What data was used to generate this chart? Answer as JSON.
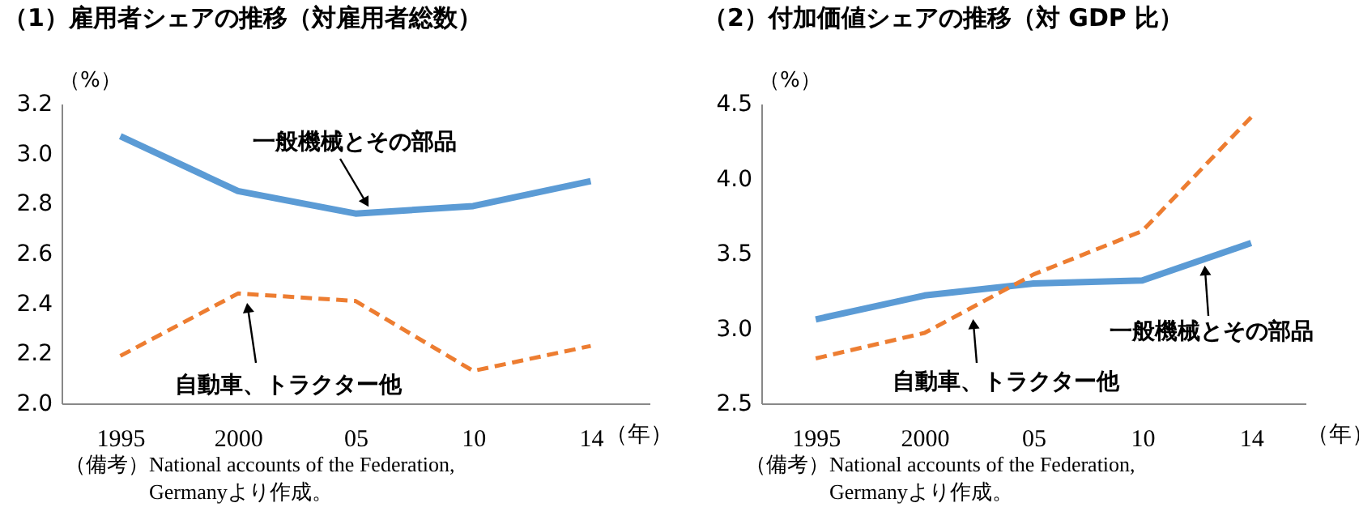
{
  "chart_data": [
    {
      "type": "line",
      "title": "（1）雇用者シェアの推移（対雇用者総数）",
      "xlabel": "（年）",
      "ylabel": "（%）",
      "categories": [
        "1995",
        "2000",
        "05",
        "10",
        "14"
      ],
      "series": [
        {
          "name": "一般機械とその部品",
          "color": "#5b9bd5",
          "line_style": "solid",
          "values": [
            3.07,
            2.85,
            2.76,
            2.79,
            2.89
          ]
        },
        {
          "name": "自動車、トラクター他",
          "color": "#ed7d31",
          "line_style": "dashed",
          "values": [
            2.19,
            2.44,
            2.41,
            2.13,
            2.23
          ]
        }
      ],
      "ylim": [
        2.0,
        3.2
      ],
      "yticks": [
        {
          "value": 2,
          "label": "2.0"
        },
        2.2,
        2.4,
        2.6,
        2.8,
        {
          "value": 3,
          "label": "3.0"
        },
        3.2
      ],
      "grid": false,
      "annotations": [
        "（備考）National accounts of the Federation,",
        "Germanyより作成。"
      ]
    },
    {
      "type": "line",
      "title": "（2）付加価値シェアの推移（対 GDP 比）",
      "xlabel": "（年）",
      "ylabel": "（%）",
      "categories": [
        "1995",
        "2000",
        "05",
        "10",
        "14"
      ],
      "series": [
        {
          "name": "一般機械とその部品",
          "color": "#5b9bd5",
          "line_style": "solid",
          "values": [
            3.06,
            3.22,
            3.3,
            3.32,
            3.57
          ]
        },
        {
          "name": "自動車、トラクター他",
          "color": "#ed7d31",
          "line_style": "dashed",
          "values": [
            2.8,
            2.97,
            3.36,
            3.65,
            4.41
          ]
        }
      ],
      "ylim": [
        2.5,
        4.5
      ],
      "yticks": [
        2.5,
        {
          "value": 3,
          "label": "3.0"
        },
        3.5,
        {
          "value": 4,
          "label": "4.0"
        },
        4.5
      ],
      "grid": false,
      "annotations": [
        "（備考）National accounts of the Federation,",
        "Germanyより作成。"
      ]
    }
  ]
}
